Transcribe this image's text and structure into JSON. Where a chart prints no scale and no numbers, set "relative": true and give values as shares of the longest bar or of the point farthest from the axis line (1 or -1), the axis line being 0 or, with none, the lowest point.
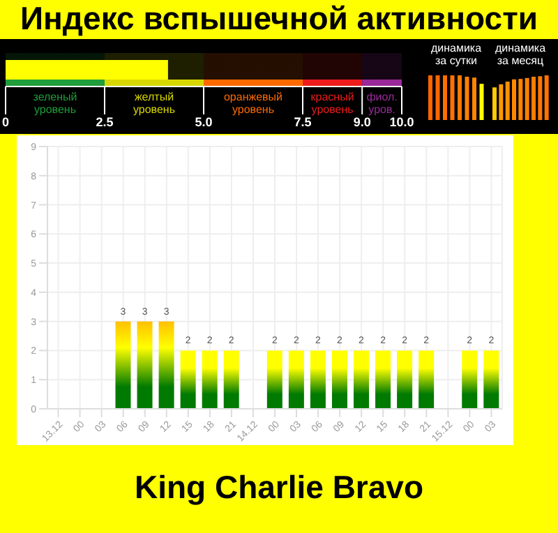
{
  "chart_data": [
    {
      "type": "bar",
      "title": "Индекс вспышечной активности",
      "orientation": "horizontal",
      "categories": [
        null
      ],
      "values": [
        4.1
      ],
      "color": "#ffff00",
      "xlim": [
        0,
        10
      ],
      "xticks": [
        0,
        2.5,
        {
          "value": 5,
          "label": "5.0"
        },
        7.5,
        {
          "value": 9,
          "label": "9.0"
        },
        {
          "value": 10,
          "label": "10.0"
        }
      ],
      "bands": [
        {
          "axis": "x",
          "from": 0,
          "to": 2.5,
          "label": "зеленый уровень",
          "color": "#1f9e3a"
        },
        {
          "axis": "x",
          "from": 2.5,
          "to": 5,
          "label": "желтый уровень",
          "color": "#d8d800"
        },
        {
          "axis": "x",
          "from": 5,
          "to": 7.5,
          "label": "оранжевый уровень",
          "color": "#ff6a00"
        },
        {
          "axis": "x",
          "from": 7.5,
          "to": 9,
          "label": "красный уровень",
          "color": "#ee1c1c"
        },
        {
          "axis": "x",
          "from": 9,
          "to": 10,
          "label": "фиол. уров.",
          "color": "#9a2a9a"
        }
      ],
      "grid": false
    },
    {
      "type": "bar",
      "title": "динамика за сутки",
      "relative": true,
      "categories": [
        null,
        null,
        null,
        null,
        null,
        null,
        null,
        null
      ],
      "values": [
        1,
        1,
        1,
        1,
        1,
        0.97,
        0.95,
        0.81
      ],
      "colors": [
        "#ff6600",
        "#ff6600",
        "#ff6e00",
        "#ff7400",
        "#ff7a00",
        "#ff8000",
        "#ff8800",
        "#ffff00"
      ]
    },
    {
      "type": "bar",
      "title": "динамика за месяц",
      "relative": true,
      "categories": [
        null,
        null,
        null,
        null,
        null,
        null,
        null,
        null,
        null
      ],
      "values": [
        0.73,
        0.8,
        0.86,
        0.91,
        0.92,
        0.94,
        0.97,
        0.98,
        1
      ],
      "colors": [
        "#ffcc00",
        "#ff9900",
        "#ff9000",
        "#ff8800",
        "#ff8400",
        "#ff8000",
        "#ff7c00",
        "#ff7800",
        "#ff7400"
      ]
    },
    {
      "type": "bar",
      "categories": [
        "13.12",
        "00",
        "03",
        "06",
        "09",
        "12",
        "15",
        "18",
        "21",
        "14.12",
        "00",
        "03",
        "06",
        "09",
        "12",
        "15",
        "18",
        "21",
        "15.12",
        "00",
        "03"
      ],
      "values": [
        0,
        0,
        0,
        3,
        3,
        3,
        2,
        2,
        2,
        0,
        2,
        2,
        2,
        2,
        2,
        2,
        2,
        2,
        0,
        2,
        2
      ],
      "value_labels": [
        null,
        null,
        null,
        "3",
        "3",
        "3",
        "2",
        "2",
        "2",
        null,
        "2",
        "2",
        "2",
        "2",
        "2",
        "2",
        "2",
        "2",
        null,
        "2",
        "2"
      ],
      "colors": [
        "#ffff00",
        "#ffff00",
        "#ffff00",
        "#ffc000",
        "#ffc000",
        "#ffc000",
        "#ffff00",
        "#ffff00",
        "#ffff00",
        "#ffff00",
        "#ffff00",
        "#ffff00",
        "#ffff00",
        "#ffff00",
        "#ffff00",
        "#ffff00",
        "#ffff00",
        "#ffff00",
        "#ffff00",
        "#ffff00",
        "#ffff00"
      ],
      "ylim": [
        0,
        9
      ],
      "yticks": [
        0,
        1,
        2,
        3,
        4,
        5,
        6,
        7,
        8,
        9
      ],
      "grid": true,
      "annotations": [
        "King Charlie Bravo"
      ]
    }
  ]
}
